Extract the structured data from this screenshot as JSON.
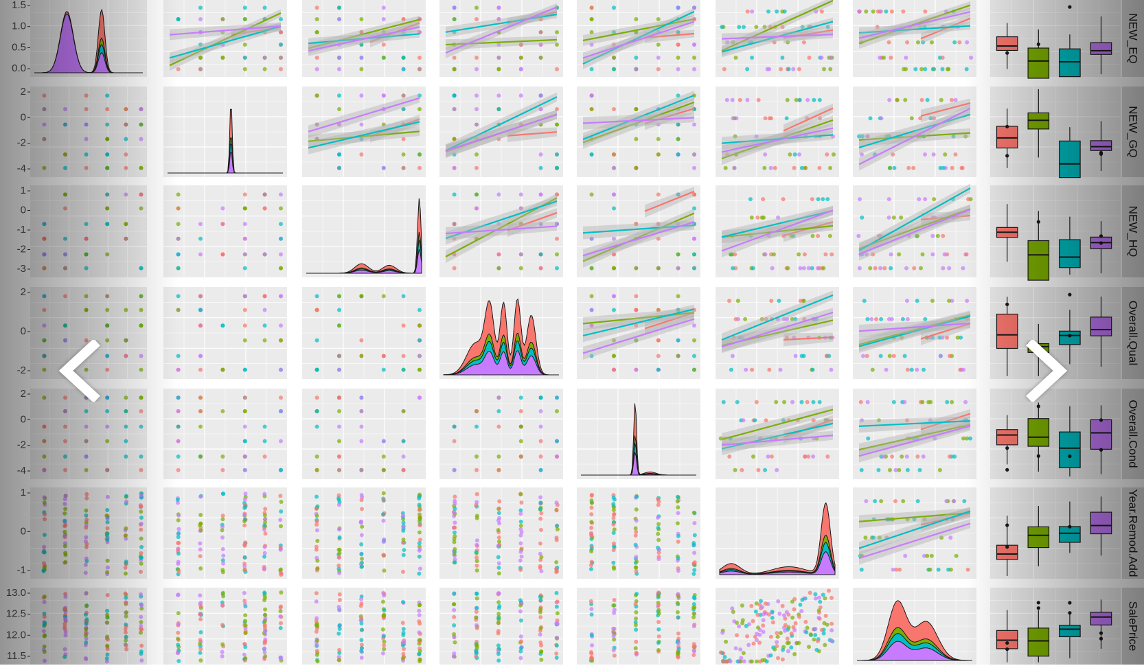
{
  "colors": {
    "panel_bg": "#ebebeb",
    "grid": "#ffffff",
    "strip_bg": "#d9d9d9",
    "strip_text": "#1a1a1a",
    "axis_text": "#4d4d4d",
    "red": "#f8766d",
    "green": "#7cae00",
    "teal": "#00bfc4",
    "purple": "#c77cff",
    "fit_band": "#b3b3b3",
    "outline": "#1a1a1a"
  },
  "carousel": {
    "prev_icon": "chevron-left-icon",
    "next_icon": "chevron-right-icon"
  },
  "chart_data": {
    "type": "scatter",
    "title": "",
    "matrix": "pairs-plot",
    "series": [
      {
        "color": "#f8766d"
      },
      {
        "color": "#7cae00"
      },
      {
        "color": "#00bfc4"
      },
      {
        "color": "#c77cff"
      }
    ],
    "row_labels": [
      "NEW_EQ",
      "NEW_GQ",
      "NEW_HQ",
      "Overall.Qual",
      "Overall.Cond",
      "Year.Remod.Add",
      "SalePrice"
    ],
    "row_ticks": [
      [
        "1.5",
        "1.0",
        "0.5",
        "0.0"
      ],
      [
        "2",
        "0",
        "-2",
        "-4"
      ],
      [
        "1",
        "0",
        "-1",
        "-2",
        "-3"
      ],
      [
        "2",
        "0",
        "-2"
      ],
      [
        "2",
        "0",
        "-2",
        "-4"
      ],
      [
        "1",
        "0",
        "-1"
      ],
      [
        "13.0",
        "12.5",
        "12.0",
        "11.5"
      ]
    ],
    "row_tick_values": [
      [
        1.5,
        1.0,
        0.5,
        0.0
      ],
      [
        2,
        0,
        -2,
        -4
      ],
      [
        1,
        0,
        -1,
        -2,
        -3
      ],
      [
        2,
        0,
        -2
      ],
      [
        2,
        0,
        -2,
        -4
      ],
      [
        1,
        0,
        -1
      ],
      [
        13.0,
        12.5,
        12.0,
        11.5
      ]
    ],
    "panels": {
      "upper": "points with linear fit per series",
      "diagonal": "density per series",
      "lower": "points",
      "last_column": "boxplot per series"
    },
    "grid": true,
    "legend": "none"
  }
}
